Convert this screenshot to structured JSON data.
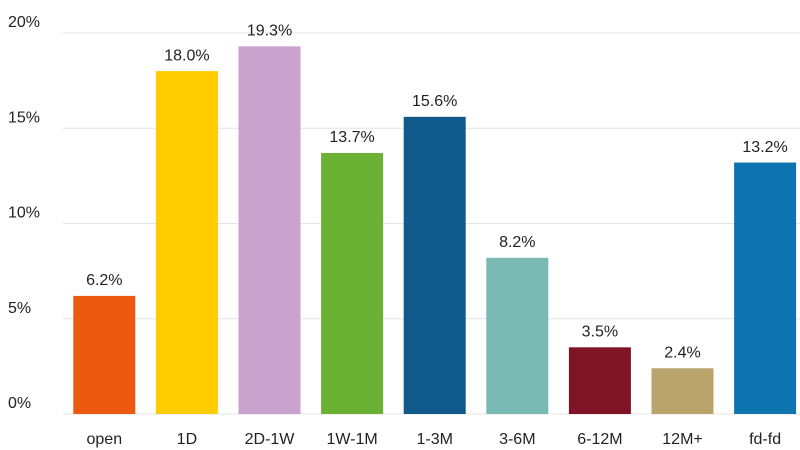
{
  "chart_data": {
    "type": "bar",
    "categories": [
      "open",
      "1D",
      "2D-1W",
      "1W-1M",
      "1-3M",
      "3-6M",
      "6-12M",
      "12M+",
      "fd-fd"
    ],
    "values": [
      6.2,
      18.0,
      19.3,
      13.7,
      15.6,
      8.2,
      3.5,
      2.4,
      13.2
    ],
    "value_labels": [
      "6.2%",
      "18.0%",
      "19.3%",
      "13.7%",
      "15.6%",
      "8.2%",
      "3.5%",
      "2.4%",
      "13.2%"
    ],
    "colors": [
      "#ec5a10",
      "#ffcc00",
      "#c9a2cd",
      "#6bb234",
      "#0f5a8a",
      "#7bbab4",
      "#7f1427",
      "#b9a56b",
      "#0e74b0"
    ],
    "ylim": [
      0,
      20
    ],
    "yticks": [
      {
        "value": 0,
        "label": "0%"
      },
      {
        "value": 5,
        "label": "5%"
      },
      {
        "value": 10,
        "label": "10%"
      },
      {
        "value": 15,
        "label": "15%"
      },
      {
        "value": 20,
        "label": "20%"
      }
    ],
    "grid": true
  }
}
